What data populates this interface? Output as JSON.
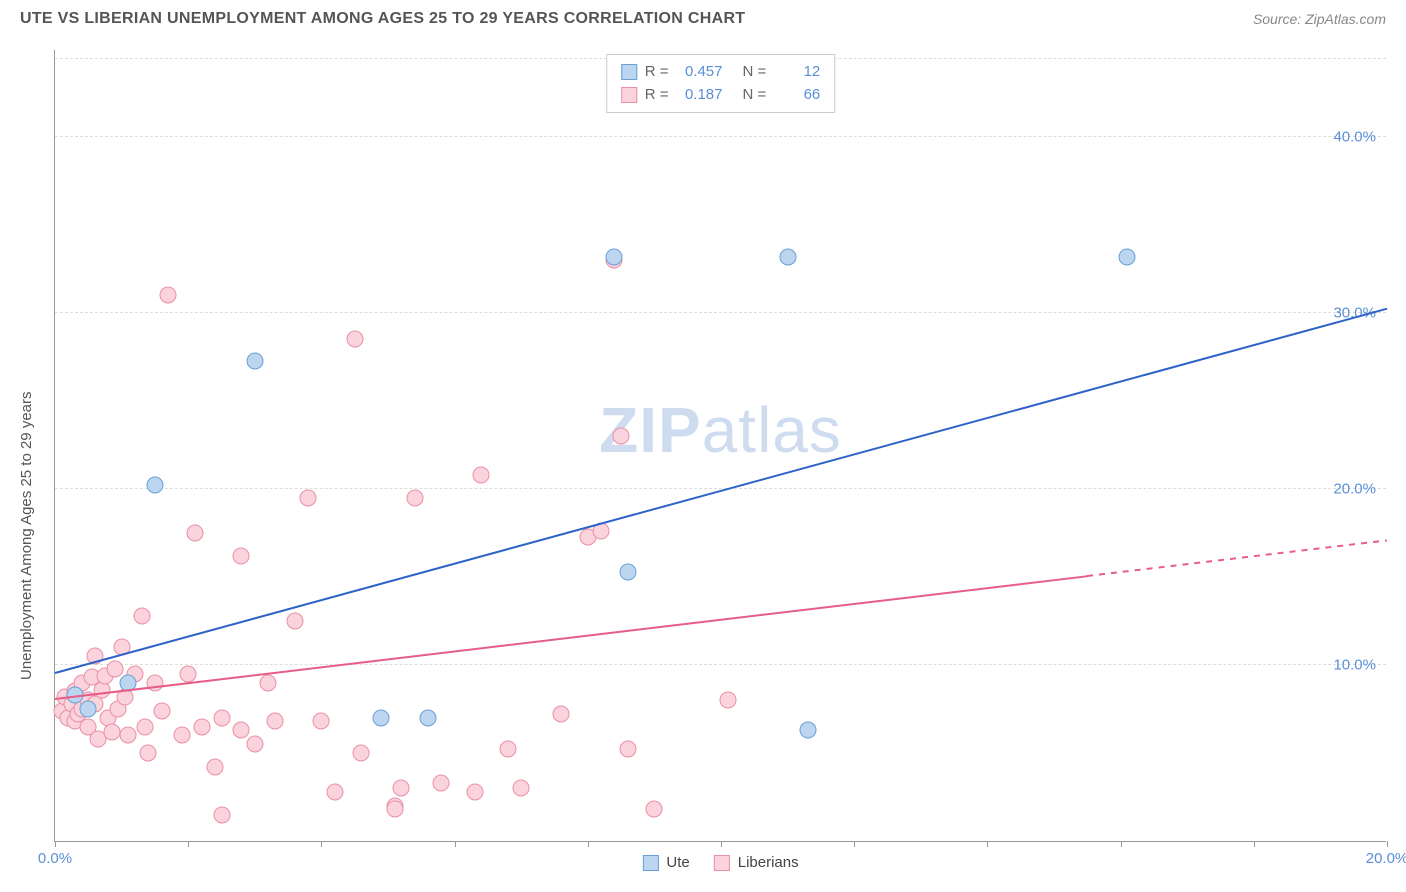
{
  "header": {
    "title": "UTE VS LIBERIAN UNEMPLOYMENT AMONG AGES 25 TO 29 YEARS CORRELATION CHART",
    "source": "Source: ZipAtlas.com"
  },
  "chart": {
    "type": "scatter",
    "ylabel": "Unemployment Among Ages 25 to 29 years",
    "watermark": "ZIPatlas",
    "background_color": "#ffffff",
    "grid_color": "#dddddd",
    "axis_color": "#999999",
    "tick_label_color": "#5b8fd6",
    "label_fontsize": 15,
    "title_fontsize": 16,
    "xlim": [
      0,
      20
    ],
    "ylim": [
      0,
      45
    ],
    "xticks_pct": [
      0,
      2,
      4,
      6,
      8,
      10,
      12,
      14,
      16,
      18,
      20
    ],
    "x_tick_labels": {
      "0": "0.0%",
      "20": "20.0%"
    },
    "y_tick_labels": [
      {
        "v": 10,
        "label": "10.0%"
      },
      {
        "v": 20,
        "label": "20.0%"
      },
      {
        "v": 30,
        "label": "30.0%"
      },
      {
        "v": 40,
        "label": "40.0%"
      }
    ],
    "series": [
      {
        "name": "Ute",
        "marker_fill": "#bcd5f0",
        "marker_stroke": "#6a9fd4",
        "marker_size": 17,
        "line_color": "#2d63c8",
        "line_width": 2,
        "R": "0.457",
        "N": "12",
        "trend": {
          "x1": 0,
          "y1": 9.5,
          "x2": 20,
          "y2": 30.2,
          "dashed_from": null
        },
        "points": [
          {
            "x": 0.3,
            "y": 8.3
          },
          {
            "x": 0.5,
            "y": 7.5
          },
          {
            "x": 1.1,
            "y": 9.0
          },
          {
            "x": 1.5,
            "y": 20.2
          },
          {
            "x": 3.0,
            "y": 27.3
          },
          {
            "x": 4.9,
            "y": 7.0
          },
          {
            "x": 5.6,
            "y": 7.0
          },
          {
            "x": 8.4,
            "y": 33.2
          },
          {
            "x": 8.6,
            "y": 15.3
          },
          {
            "x": 11.3,
            "y": 6.3
          },
          {
            "x": 11.0,
            "y": 33.2
          },
          {
            "x": 16.1,
            "y": 33.2
          }
        ]
      },
      {
        "name": "Liberians",
        "marker_fill": "#fbd3dd",
        "marker_stroke": "#e98fa6",
        "marker_size": 17,
        "line_color": "#e85d87",
        "line_width": 2,
        "R": "0.187",
        "N": "66",
        "trend": {
          "x1": 0,
          "y1": 8.0,
          "x2": 20,
          "y2": 17.0,
          "dashed_from": 15.5
        },
        "points": [
          {
            "x": 0.1,
            "y": 7.4
          },
          {
            "x": 0.15,
            "y": 8.2
          },
          {
            "x": 0.2,
            "y": 7.0
          },
          {
            "x": 0.25,
            "y": 7.8
          },
          {
            "x": 0.3,
            "y": 8.5
          },
          {
            "x": 0.3,
            "y": 6.8
          },
          {
            "x": 0.35,
            "y": 7.2
          },
          {
            "x": 0.4,
            "y": 9.0
          },
          {
            "x": 0.4,
            "y": 7.5
          },
          {
            "x": 0.5,
            "y": 6.5
          },
          {
            "x": 0.5,
            "y": 8.0
          },
          {
            "x": 0.55,
            "y": 9.3
          },
          {
            "x": 0.6,
            "y": 10.5
          },
          {
            "x": 0.6,
            "y": 7.8
          },
          {
            "x": 0.65,
            "y": 5.8
          },
          {
            "x": 0.7,
            "y": 8.6
          },
          {
            "x": 0.75,
            "y": 9.4
          },
          {
            "x": 0.8,
            "y": 7.0
          },
          {
            "x": 0.85,
            "y": 6.2
          },
          {
            "x": 0.9,
            "y": 9.8
          },
          {
            "x": 0.95,
            "y": 7.5
          },
          {
            "x": 1.0,
            "y": 11.0
          },
          {
            "x": 1.05,
            "y": 8.2
          },
          {
            "x": 1.1,
            "y": 6.0
          },
          {
            "x": 1.2,
            "y": 9.5
          },
          {
            "x": 1.3,
            "y": 12.8
          },
          {
            "x": 1.35,
            "y": 6.5
          },
          {
            "x": 1.4,
            "y": 5.0
          },
          {
            "x": 1.5,
            "y": 9.0
          },
          {
            "x": 1.6,
            "y": 7.4
          },
          {
            "x": 1.7,
            "y": 31.0
          },
          {
            "x": 1.9,
            "y": 6.0
          },
          {
            "x": 2.0,
            "y": 9.5
          },
          {
            "x": 2.1,
            "y": 17.5
          },
          {
            "x": 2.2,
            "y": 6.5
          },
          {
            "x": 2.4,
            "y": 4.2
          },
          {
            "x": 2.5,
            "y": 7.0
          },
          {
            "x": 2.5,
            "y": 1.5
          },
          {
            "x": 2.8,
            "y": 16.2
          },
          {
            "x": 2.8,
            "y": 6.3
          },
          {
            "x": 3.0,
            "y": 5.5
          },
          {
            "x": 3.2,
            "y": 9.0
          },
          {
            "x": 3.3,
            "y": 6.8
          },
          {
            "x": 3.6,
            "y": 12.5
          },
          {
            "x": 3.8,
            "y": 19.5
          },
          {
            "x": 4.0,
            "y": 6.8
          },
          {
            "x": 4.2,
            "y": 2.8
          },
          {
            "x": 4.5,
            "y": 28.5
          },
          {
            "x": 4.6,
            "y": 5.0
          },
          {
            "x": 5.1,
            "y": 2.0
          },
          {
            "x": 5.1,
            "y": 1.8
          },
          {
            "x": 5.2,
            "y": 3.0
          },
          {
            "x": 5.4,
            "y": 19.5
          },
          {
            "x": 5.8,
            "y": 3.3
          },
          {
            "x": 6.3,
            "y": 2.8
          },
          {
            "x": 6.4,
            "y": 20.8
          },
          {
            "x": 6.8,
            "y": 5.2
          },
          {
            "x": 7.0,
            "y": 3.0
          },
          {
            "x": 7.6,
            "y": 7.2
          },
          {
            "x": 8.0,
            "y": 17.3
          },
          {
            "x": 8.2,
            "y": 17.6
          },
          {
            "x": 8.5,
            "y": 23.0
          },
          {
            "x": 8.6,
            "y": 5.2
          },
          {
            "x": 9.0,
            "y": 1.8
          },
          {
            "x": 10.1,
            "y": 8.0
          },
          {
            "x": 8.4,
            "y": 33.0
          }
        ]
      }
    ],
    "legend_bottom": [
      {
        "name": "Ute",
        "fill": "#bcd5f0",
        "stroke": "#6a9fd4"
      },
      {
        "name": "Liberians",
        "fill": "#fbd3dd",
        "stroke": "#e98fa6"
      }
    ]
  }
}
